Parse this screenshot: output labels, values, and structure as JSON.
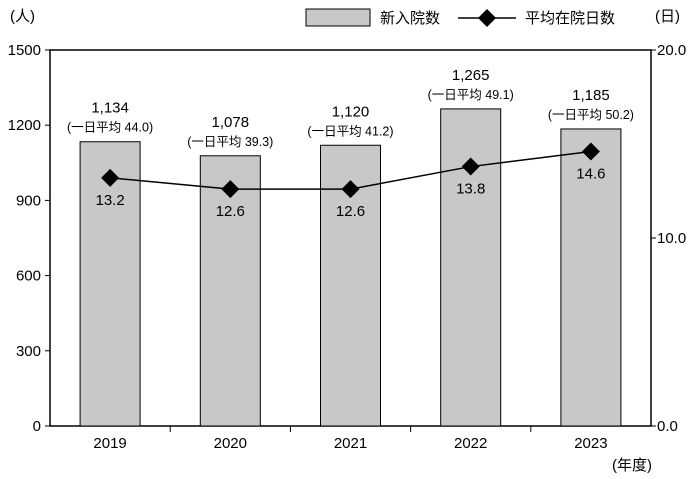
{
  "chart_data": {
    "type": "bar",
    "categories": [
      "2019",
      "2020",
      "2021",
      "2022",
      "2023"
    ],
    "series": [
      {
        "name": "新入院数",
        "type": "bar",
        "axis": "left",
        "values": [
          1134,
          1078,
          1120,
          1265,
          1185
        ],
        "value_labels": [
          "1,134",
          "1,078",
          "1,120",
          "1,265",
          "1,185"
        ],
        "sub_labels": [
          "(一日平均 44.0)",
          "(一日平均 39.3)",
          "(一日平均 41.2)",
          "(一日平均 49.1)",
          "(一日平均 50.2)"
        ]
      },
      {
        "name": "平均在院日数",
        "type": "line",
        "axis": "right",
        "values": [
          13.2,
          12.6,
          12.6,
          13.8,
          14.6
        ],
        "value_labels": [
          "13.2",
          "12.6",
          "12.6",
          "13.8",
          "14.6"
        ]
      }
    ],
    "y_left": {
      "unit": "(人)",
      "ylim": [
        0,
        1500
      ],
      "ticks": [
        0,
        300,
        600,
        900,
        1200,
        1500
      ],
      "tick_labels": [
        "0",
        "300",
        "600",
        "900",
        "1200",
        "1500"
      ]
    },
    "y_right": {
      "unit": "(日)",
      "ylim": [
        0,
        20
      ],
      "ticks": [
        0,
        10,
        20
      ],
      "tick_labels": [
        "0.0",
        "10.0",
        "20.0"
      ]
    },
    "x_unit": "(年度)",
    "grid": false,
    "legend_position": "top-right",
    "colors": {
      "bar_fill": "#c8c8c8",
      "bar_stroke": "#000000",
      "line": "#000000",
      "marker": "#000000"
    }
  }
}
